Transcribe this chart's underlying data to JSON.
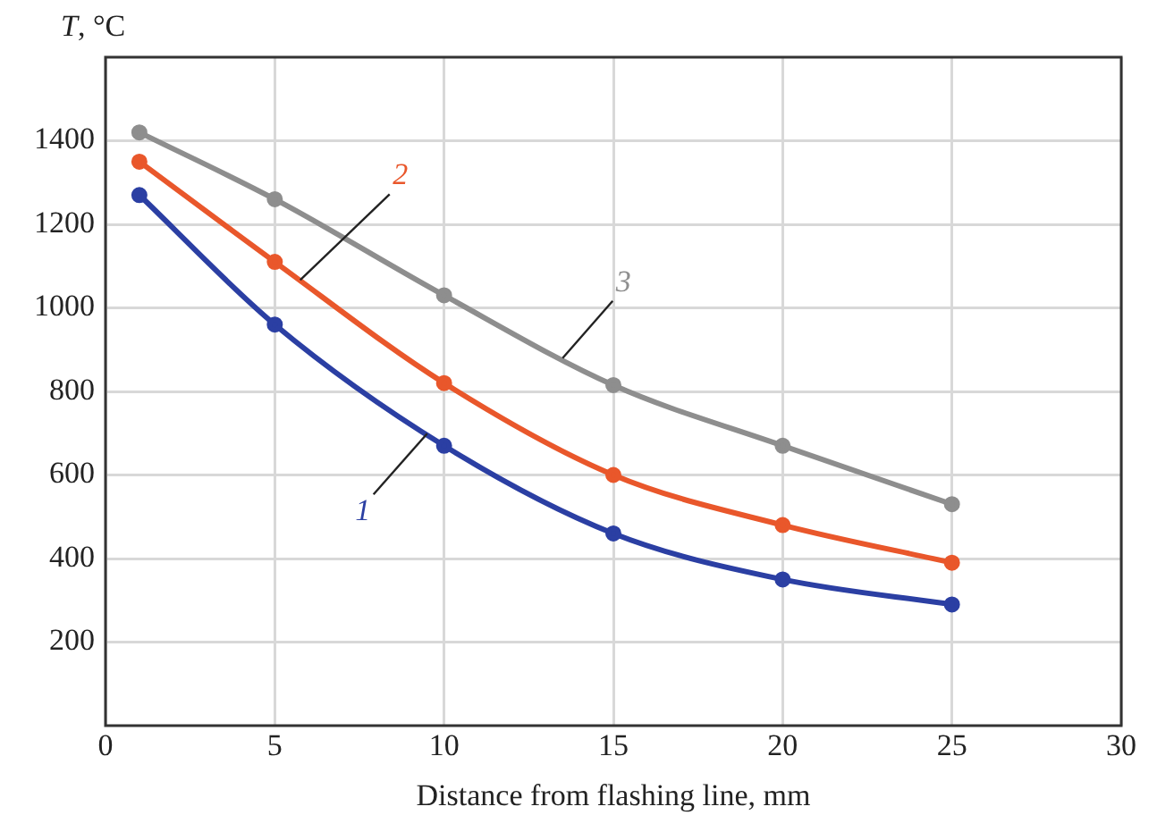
{
  "chart_data": {
    "type": "line",
    "xlabel": "Distance from flashing line, mm",
    "ylabel": "T, °C",
    "x": [
      1,
      5,
      10,
      15,
      20,
      25
    ],
    "series": [
      {
        "name": "1",
        "color": "#2b3fa3",
        "values": [
          1270,
          960,
          670,
          460,
          350,
          290
        ]
      },
      {
        "name": "2",
        "color": "#e9572b",
        "values": [
          1350,
          1110,
          820,
          600,
          480,
          390
        ]
      },
      {
        "name": "3",
        "color": "#8e8e8e",
        "values": [
          1420,
          1260,
          1030,
          815,
          670,
          530
        ]
      }
    ],
    "xlim": [
      0,
      30
    ],
    "xticks": [
      0,
      5,
      10,
      15,
      20,
      25,
      30
    ],
    "ylim": [
      0,
      1600
    ],
    "yticks": [
      200,
      400,
      600,
      800,
      1000,
      1200,
      1400
    ],
    "grid": true,
    "legend": false,
    "marker": "circle",
    "line_style": "solid"
  }
}
